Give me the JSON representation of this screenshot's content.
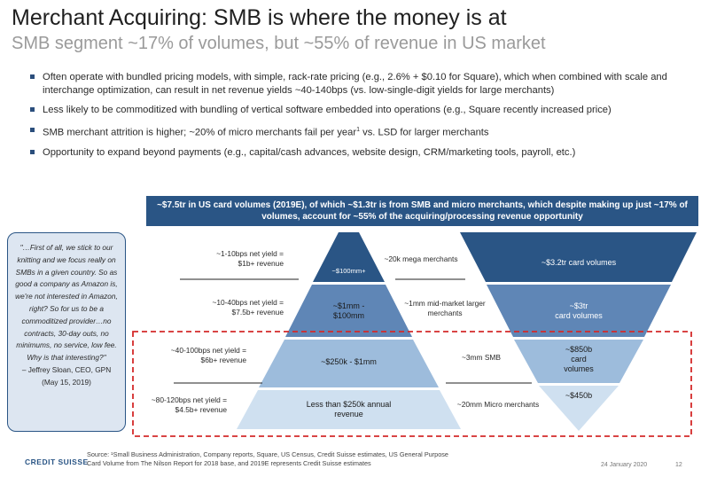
{
  "header": {
    "title": "Merchant Acquiring: SMB is where the money is at",
    "subtitle": "SMB segment ~17% of volumes, but ~55% of revenue in US market"
  },
  "bullets": [
    {
      "text": "Often operate with bundled pricing models, with simple, rack-rate pricing (e.g., 2.6% + $0.10 for Square), which when combined with scale and interchange optimization, can result in net revenue yields ~40-140bps (vs. low-single-digit yields for large merchants)"
    },
    {
      "text": "Less likely to be commoditized with bundling of vertical software embedded into operations (e.g., Square recently increased price)"
    },
    {
      "text": "SMB merchant attrition is higher; ~20% of micro merchants fail per year",
      "sup": "1",
      "after": " vs. LSD for larger merchants"
    },
    {
      "text": "Opportunity to expand beyond payments (e.g., capital/cash advances, website design, CRM/marketing tools, payroll, etc.)"
    }
  ],
  "banner": {
    "text": "~$7.5tr in US card volumes (2019E), of which ~$1.3tr is from SMB and micro merchants, which despite making up just ~17% of volumes, account for ~55% of the acquiring/processing revenue opportunity"
  },
  "quote": {
    "text": "\"…First of all, we stick to our knitting and we focus really on SMBs in a given country. So as good a company as Amazon is, we're not interested in Amazon, right? So for us to be a commoditized provider…no contracts, 30-day outs, no minimums, no service, low fee. Why is that interesting?\"",
    "attribution": "– Jeffrey Sloan, CEO, GPN",
    "date": "(May 15, 2019)"
  },
  "tiers": [
    {
      "yield": "~1-10bps net yield =\n$1b+ revenue",
      "pyramid": "~$100mm+",
      "merchants": "~20k mega merchants",
      "volume": "~$3.2tr card volumes"
    },
    {
      "yield": "~10-40bps net yield =\n$7.5b+ revenue",
      "pyramid": "~$1mm -\n$100mm",
      "merchants": "~1mm mid-market larger\nmerchants",
      "volume": "~$3tr\ncard volumes"
    },
    {
      "yield": "~40-100bps net yield =\n$6b+ revenue",
      "pyramid": "~$250k - $1mm",
      "merchants": "~3mm SMB",
      "volume": "~$850b\ncard\nvolumes"
    },
    {
      "yield": "~80-120bps net yield =\n$4.5b+ revenue",
      "pyramid": "Less than $250k annual\nrevenue",
      "merchants": "~20mm Micro merchants",
      "volume": "~$450b"
    }
  ],
  "colors": {
    "dark_blue": "#2a5585",
    "mid_blue": "#5f86b6",
    "light_blue": "#9dbcdc",
    "pale_blue": "#cfe0f0",
    "highlight_border": "#d42a2a"
  },
  "footer": {
    "logo": "CREDIT SUISSE",
    "source_line1": "Source: ¹Small Business Administration, Company reports, Square, US Census, Credit Suisse estimates, US General Purpose",
    "source_line2": "Card Volume from The Nilson Report for 2018 base, and 2019E represents Credit Suisse estimates",
    "date": "24 January 2020",
    "page": "12"
  }
}
